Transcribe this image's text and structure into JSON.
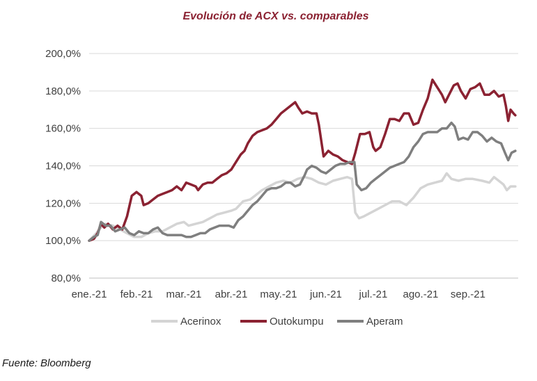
{
  "source_note": "Fuente: Bloomberg",
  "colors": {
    "title": "#8b2232",
    "grid": "#d9d9d9",
    "axis": "#bfbfbf"
  },
  "chart_data": {
    "type": "line",
    "title": "Evolución de ACX vs. comparables",
    "xlabel": "",
    "ylabel": "",
    "x_tick_labels": [
      "ene.-21",
      "feb.-21",
      "mar.-21",
      "abr.-21",
      "may.-21",
      "jun.-21",
      "jul.-21",
      "ago.-21",
      "sep.-21"
    ],
    "x_range": [
      0,
      9.06
    ],
    "ylim": [
      80,
      200
    ],
    "y_ticks": [
      80,
      100,
      120,
      140,
      160,
      180,
      200
    ],
    "y_tick_labels": [
      "80,0%",
      "100,0%",
      "120,0%",
      "140,0%",
      "160,0%",
      "180,0%",
      "200,0%"
    ],
    "grid": "horizontal",
    "legend_position": "bottom",
    "series": [
      {
        "name": "Acerinox",
        "color": "#d4d4d4",
        "points": [
          [
            0,
            100
          ],
          [
            0.15,
            104
          ],
          [
            0.25,
            107
          ],
          [
            0.35,
            109
          ],
          [
            0.5,
            108
          ],
          [
            0.65,
            106
          ],
          [
            0.8,
            104
          ],
          [
            0.95,
            102
          ],
          [
            1.1,
            102
          ],
          [
            1.25,
            104
          ],
          [
            1.4,
            105
          ],
          [
            1.55,
            105
          ],
          [
            1.7,
            107
          ],
          [
            1.85,
            109
          ],
          [
            2.0,
            110
          ],
          [
            2.1,
            108
          ],
          [
            2.25,
            109
          ],
          [
            2.4,
            110
          ],
          [
            2.55,
            112
          ],
          [
            2.7,
            114
          ],
          [
            2.85,
            115
          ],
          [
            3.0,
            116
          ],
          [
            3.1,
            117
          ],
          [
            3.25,
            121
          ],
          [
            3.4,
            122
          ],
          [
            3.5,
            124
          ],
          [
            3.65,
            127
          ],
          [
            3.8,
            129
          ],
          [
            3.95,
            131
          ],
          [
            4.1,
            132
          ],
          [
            4.25,
            131
          ],
          [
            4.4,
            133
          ],
          [
            4.55,
            134
          ],
          [
            4.7,
            133
          ],
          [
            4.85,
            131
          ],
          [
            5.0,
            130
          ],
          [
            5.15,
            132
          ],
          [
            5.3,
            133
          ],
          [
            5.45,
            134
          ],
          [
            5.55,
            133
          ],
          [
            5.62,
            115
          ],
          [
            5.7,
            112
          ],
          [
            5.8,
            113
          ],
          [
            5.95,
            115
          ],
          [
            6.1,
            117
          ],
          [
            6.25,
            119
          ],
          [
            6.4,
            121
          ],
          [
            6.55,
            121
          ],
          [
            6.7,
            119
          ],
          [
            6.85,
            123
          ],
          [
            7.0,
            128
          ],
          [
            7.15,
            130
          ],
          [
            7.3,
            131
          ],
          [
            7.45,
            132
          ],
          [
            7.55,
            136
          ],
          [
            7.65,
            133
          ],
          [
            7.8,
            132
          ],
          [
            7.95,
            133
          ],
          [
            8.1,
            133
          ],
          [
            8.3,
            132
          ],
          [
            8.45,
            131
          ],
          [
            8.55,
            134
          ],
          [
            8.65,
            132
          ],
          [
            8.75,
            130
          ],
          [
            8.82,
            127
          ],
          [
            8.9,
            129
          ],
          [
            9.0,
            129
          ]
        ]
      },
      {
        "name": "Outokumpu",
        "color": "#8b2232",
        "points": [
          [
            0,
            100
          ],
          [
            0.1,
            101
          ],
          [
            0.18,
            104
          ],
          [
            0.25,
            109
          ],
          [
            0.32,
            107
          ],
          [
            0.4,
            109
          ],
          [
            0.5,
            106
          ],
          [
            0.6,
            108
          ],
          [
            0.7,
            106
          ],
          [
            0.8,
            113
          ],
          [
            0.9,
            124
          ],
          [
            1.0,
            126
          ],
          [
            1.1,
            124
          ],
          [
            1.15,
            119
          ],
          [
            1.25,
            120
          ],
          [
            1.35,
            122
          ],
          [
            1.45,
            124
          ],
          [
            1.55,
            125
          ],
          [
            1.65,
            126
          ],
          [
            1.75,
            127
          ],
          [
            1.85,
            129
          ],
          [
            1.95,
            127
          ],
          [
            2.05,
            131
          ],
          [
            2.15,
            130
          ],
          [
            2.25,
            129
          ],
          [
            2.3,
            127
          ],
          [
            2.4,
            130
          ],
          [
            2.5,
            131
          ],
          [
            2.6,
            131
          ],
          [
            2.7,
            133
          ],
          [
            2.8,
            135
          ],
          [
            2.9,
            136
          ],
          [
            3.0,
            138
          ],
          [
            3.1,
            142
          ],
          [
            3.2,
            146
          ],
          [
            3.28,
            148
          ],
          [
            3.35,
            152
          ],
          [
            3.45,
            156
          ],
          [
            3.55,
            158
          ],
          [
            3.65,
            159
          ],
          [
            3.75,
            160
          ],
          [
            3.85,
            162
          ],
          [
            3.95,
            165
          ],
          [
            4.05,
            168
          ],
          [
            4.15,
            170
          ],
          [
            4.25,
            172
          ],
          [
            4.35,
            174
          ],
          [
            4.42,
            171
          ],
          [
            4.5,
            168
          ],
          [
            4.6,
            169
          ],
          [
            4.7,
            168
          ],
          [
            4.8,
            168
          ],
          [
            4.85,
            162
          ],
          [
            4.95,
            145
          ],
          [
            5.05,
            148
          ],
          [
            5.15,
            146
          ],
          [
            5.25,
            145
          ],
          [
            5.35,
            143
          ],
          [
            5.45,
            142
          ],
          [
            5.55,
            141
          ],
          [
            5.62,
            147
          ],
          [
            5.72,
            157
          ],
          [
            5.82,
            157
          ],
          [
            5.92,
            158
          ],
          [
            6.0,
            150
          ],
          [
            6.05,
            148
          ],
          [
            6.15,
            150
          ],
          [
            6.25,
            157
          ],
          [
            6.35,
            165
          ],
          [
            6.45,
            165
          ],
          [
            6.55,
            164
          ],
          [
            6.65,
            168
          ],
          [
            6.75,
            168
          ],
          [
            6.85,
            162
          ],
          [
            6.95,
            163
          ],
          [
            7.05,
            170
          ],
          [
            7.15,
            176
          ],
          [
            7.25,
            186
          ],
          [
            7.35,
            182
          ],
          [
            7.45,
            178
          ],
          [
            7.52,
            174
          ],
          [
            7.6,
            178
          ],
          [
            7.7,
            183
          ],
          [
            7.78,
            184
          ],
          [
            7.85,
            180
          ],
          [
            7.95,
            176
          ],
          [
            8.05,
            181
          ],
          [
            8.15,
            182
          ],
          [
            8.25,
            184
          ],
          [
            8.35,
            178
          ],
          [
            8.45,
            178
          ],
          [
            8.55,
            180
          ],
          [
            8.65,
            177
          ],
          [
            8.75,
            178
          ],
          [
            8.8,
            172
          ],
          [
            8.85,
            164
          ],
          [
            8.9,
            170
          ],
          [
            8.96,
            168
          ],
          [
            9.0,
            167
          ]
        ]
      },
      {
        "name": "Aperam",
        "color": "#7f7f7f",
        "points": [
          [
            0,
            100
          ],
          [
            0.1,
            102
          ],
          [
            0.18,
            103
          ],
          [
            0.25,
            110
          ],
          [
            0.35,
            108
          ],
          [
            0.45,
            108
          ],
          [
            0.55,
            105
          ],
          [
            0.65,
            106
          ],
          [
            0.75,
            107
          ],
          [
            0.85,
            104
          ],
          [
            0.95,
            103
          ],
          [
            1.05,
            105
          ],
          [
            1.15,
            104
          ],
          [
            1.25,
            104
          ],
          [
            1.35,
            106
          ],
          [
            1.45,
            107
          ],
          [
            1.55,
            104
          ],
          [
            1.65,
            103
          ],
          [
            1.75,
            103
          ],
          [
            1.85,
            103
          ],
          [
            1.95,
            103
          ],
          [
            2.05,
            102
          ],
          [
            2.15,
            102
          ],
          [
            2.25,
            103
          ],
          [
            2.35,
            104
          ],
          [
            2.45,
            104
          ],
          [
            2.55,
            106
          ],
          [
            2.65,
            107
          ],
          [
            2.75,
            108
          ],
          [
            2.85,
            108
          ],
          [
            2.95,
            108
          ],
          [
            3.05,
            107
          ],
          [
            3.15,
            111
          ],
          [
            3.25,
            113
          ],
          [
            3.35,
            116
          ],
          [
            3.45,
            119
          ],
          [
            3.55,
            121
          ],
          [
            3.65,
            124
          ],
          [
            3.75,
            127
          ],
          [
            3.85,
            128
          ],
          [
            3.95,
            128
          ],
          [
            4.05,
            129
          ],
          [
            4.15,
            131
          ],
          [
            4.25,
            131
          ],
          [
            4.35,
            129
          ],
          [
            4.45,
            130
          ],
          [
            4.55,
            135
          ],
          [
            4.6,
            138
          ],
          [
            4.7,
            140
          ],
          [
            4.8,
            139
          ],
          [
            4.9,
            137
          ],
          [
            5.0,
            136
          ],
          [
            5.1,
            138
          ],
          [
            5.2,
            140
          ],
          [
            5.3,
            141
          ],
          [
            5.4,
            141
          ],
          [
            5.5,
            142
          ],
          [
            5.6,
            142
          ],
          [
            5.65,
            130
          ],
          [
            5.75,
            127
          ],
          [
            5.85,
            128
          ],
          [
            5.95,
            131
          ],
          [
            6.05,
            133
          ],
          [
            6.15,
            135
          ],
          [
            6.25,
            137
          ],
          [
            6.35,
            139
          ],
          [
            6.45,
            140
          ],
          [
            6.55,
            141
          ],
          [
            6.65,
            142
          ],
          [
            6.75,
            145
          ],
          [
            6.85,
            150
          ],
          [
            6.95,
            153
          ],
          [
            7.05,
            157
          ],
          [
            7.15,
            158
          ],
          [
            7.25,
            158
          ],
          [
            7.35,
            158
          ],
          [
            7.45,
            160
          ],
          [
            7.55,
            160
          ],
          [
            7.65,
            163
          ],
          [
            7.72,
            161
          ],
          [
            7.8,
            154
          ],
          [
            7.9,
            155
          ],
          [
            8.0,
            154
          ],
          [
            8.1,
            158
          ],
          [
            8.2,
            158
          ],
          [
            8.3,
            156
          ],
          [
            8.4,
            153
          ],
          [
            8.5,
            155
          ],
          [
            8.6,
            153
          ],
          [
            8.7,
            152
          ],
          [
            8.78,
            147
          ],
          [
            8.85,
            143
          ],
          [
            8.92,
            147
          ],
          [
            9.0,
            148
          ]
        ]
      }
    ]
  }
}
